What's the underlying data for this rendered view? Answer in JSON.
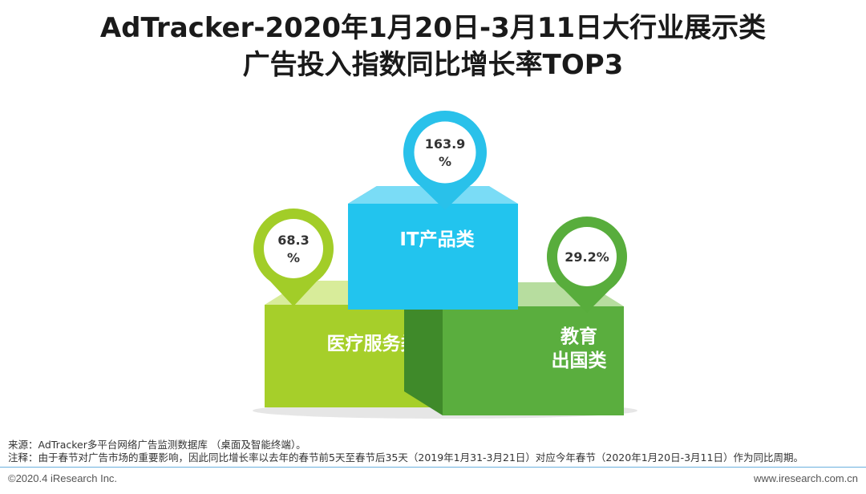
{
  "title": {
    "line1": "AdTracker-2020年1月20日-3月11日大行业展示类",
    "line2": "广告投入指数同比增长率TOP3"
  },
  "chart_data": {
    "type": "bar",
    "categories": [
      "IT产品类",
      "医疗服务类",
      "教育出国类"
    ],
    "category_lines": [
      [
        "IT产品类"
      ],
      [
        "医疗服务类"
      ],
      [
        "教育",
        "出国类"
      ]
    ],
    "values": [
      163.9,
      68.3,
      29.2
    ],
    "value_labels": [
      [
        "163.9",
        "%"
      ],
      [
        "68.3",
        "%"
      ],
      [
        "29.2%"
      ]
    ],
    "colors": {
      "it_front": "#22c4ee",
      "it_top": "#7adcf6",
      "it_side": "#12a0c8",
      "it_pin": "#29c1ea",
      "med_front": "#a6cf2a",
      "med_top": "#d8ec9a",
      "med_side": "#7ea61c",
      "med_pin": "#a2cd28",
      "edu_front": "#5aae3e",
      "edu_top": "#b7dd9f",
      "edu_side": "#3f8a2a",
      "edu_pin": "#58ad3c"
    }
  },
  "notes": {
    "source": "来源：AdTracker多平台网络广告监测数据库 （桌面及智能终端）。",
    "remark": "注释：由于春节对广告市场的重要影响，因此同比增长率以去年的春节前5天至春节后35天（2019年1月31-3月21日）对应今年春节（2020年1月20日-3月11日）作为同比周期。"
  },
  "footer": {
    "copyright": "©2020.4 iResearch Inc.",
    "website": "www.iresearch.com.cn"
  }
}
